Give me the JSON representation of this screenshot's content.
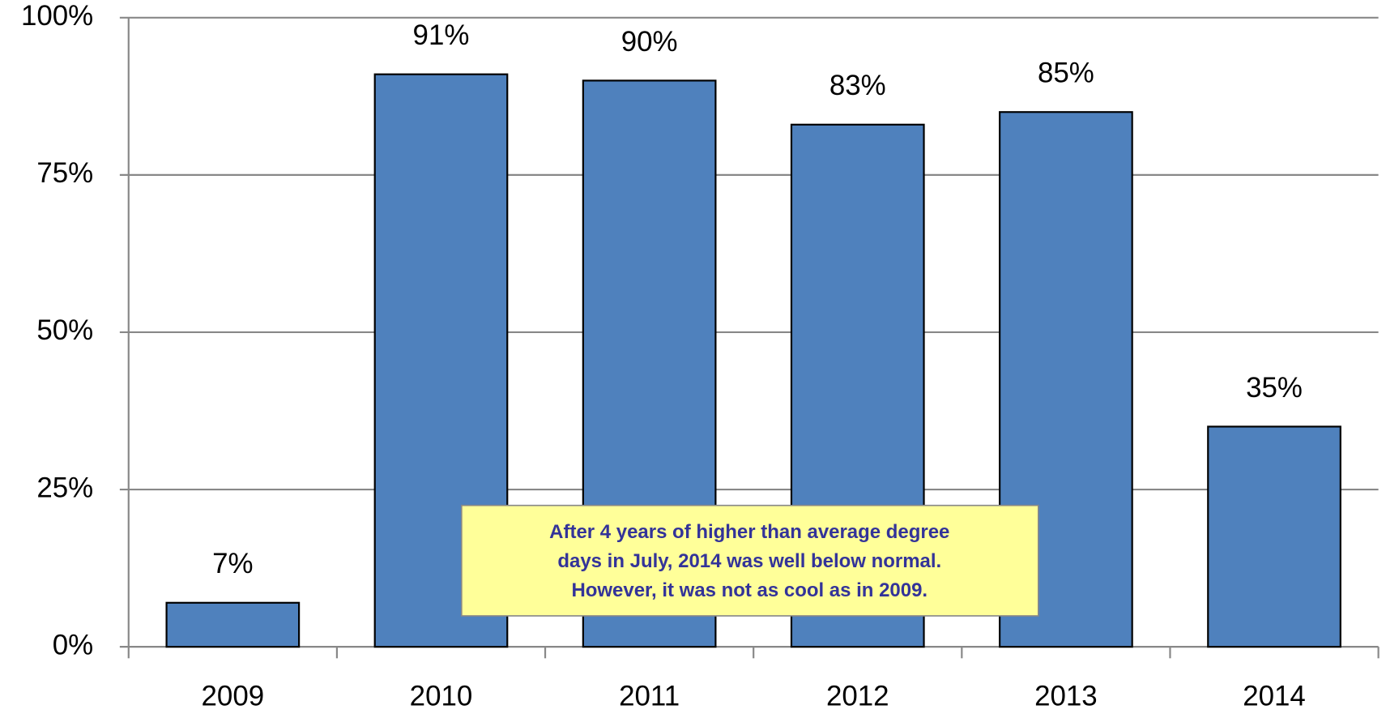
{
  "chart_data": {
    "type": "bar",
    "categories": [
      "2009",
      "2010",
      "2011",
      "2012",
      "2013",
      "2014"
    ],
    "values": [
      7,
      91,
      90,
      83,
      85,
      35
    ],
    "value_labels": [
      "7%",
      "91%",
      "90%",
      "83%",
      "85%",
      "35%"
    ],
    "color": "#4f81bd",
    "ylim": [
      0,
      100
    ],
    "yticks": [
      {
        "value": 0,
        "label": "0%"
      },
      {
        "value": 25,
        "label": "25%"
      },
      {
        "value": 50,
        "label": "50%"
      },
      {
        "value": 75,
        "label": "75%"
      },
      {
        "value": 100,
        "label": "100%"
      }
    ],
    "grid": true,
    "annotation": [
      "After 4 years of higher than average degree",
      "days in July, 2014 was well below normal.",
      "However, it was not as cool as in 2009."
    ]
  }
}
